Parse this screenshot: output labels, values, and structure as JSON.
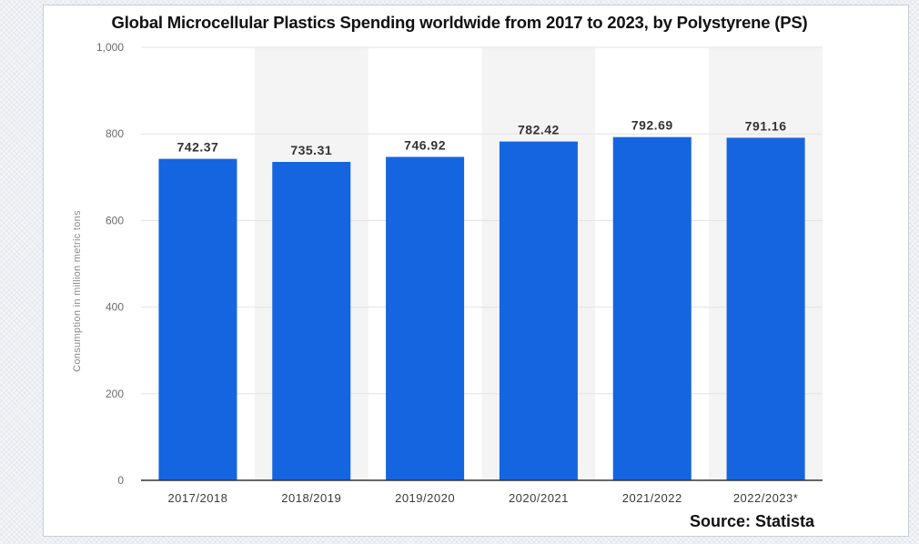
{
  "chart_data": {
    "type": "bar",
    "title": "Global Microcellular Plastics Spending worldwide from 2017 to 2023, by Polystyrene (PS)",
    "xlabel": "",
    "ylabel": "Consumption in million metric tons",
    "categories": [
      "2017/2018",
      "2018/2019",
      "2019/2020",
      "2020/2021",
      "2021/2022",
      "2022/2023*"
    ],
    "values": [
      742.37,
      735.31,
      746.92,
      782.42,
      792.69,
      791.16
    ],
    "value_labels": [
      "742.37",
      "735.31",
      "746.92",
      "782.42",
      "792.69",
      "791.16"
    ],
    "ylim": [
      0,
      1000
    ],
    "yticks": [
      0,
      200,
      400,
      600,
      800,
      1000
    ],
    "ytick_labels": [
      "0",
      "200",
      "400",
      "600",
      "800",
      "1,000"
    ],
    "grid": true,
    "legend": "none",
    "source": "Source: Statista",
    "colors": {
      "bar": "#1565e0",
      "band": "#f4f4f4",
      "grid": "#e3e3e3",
      "axis": "#333333"
    }
  }
}
